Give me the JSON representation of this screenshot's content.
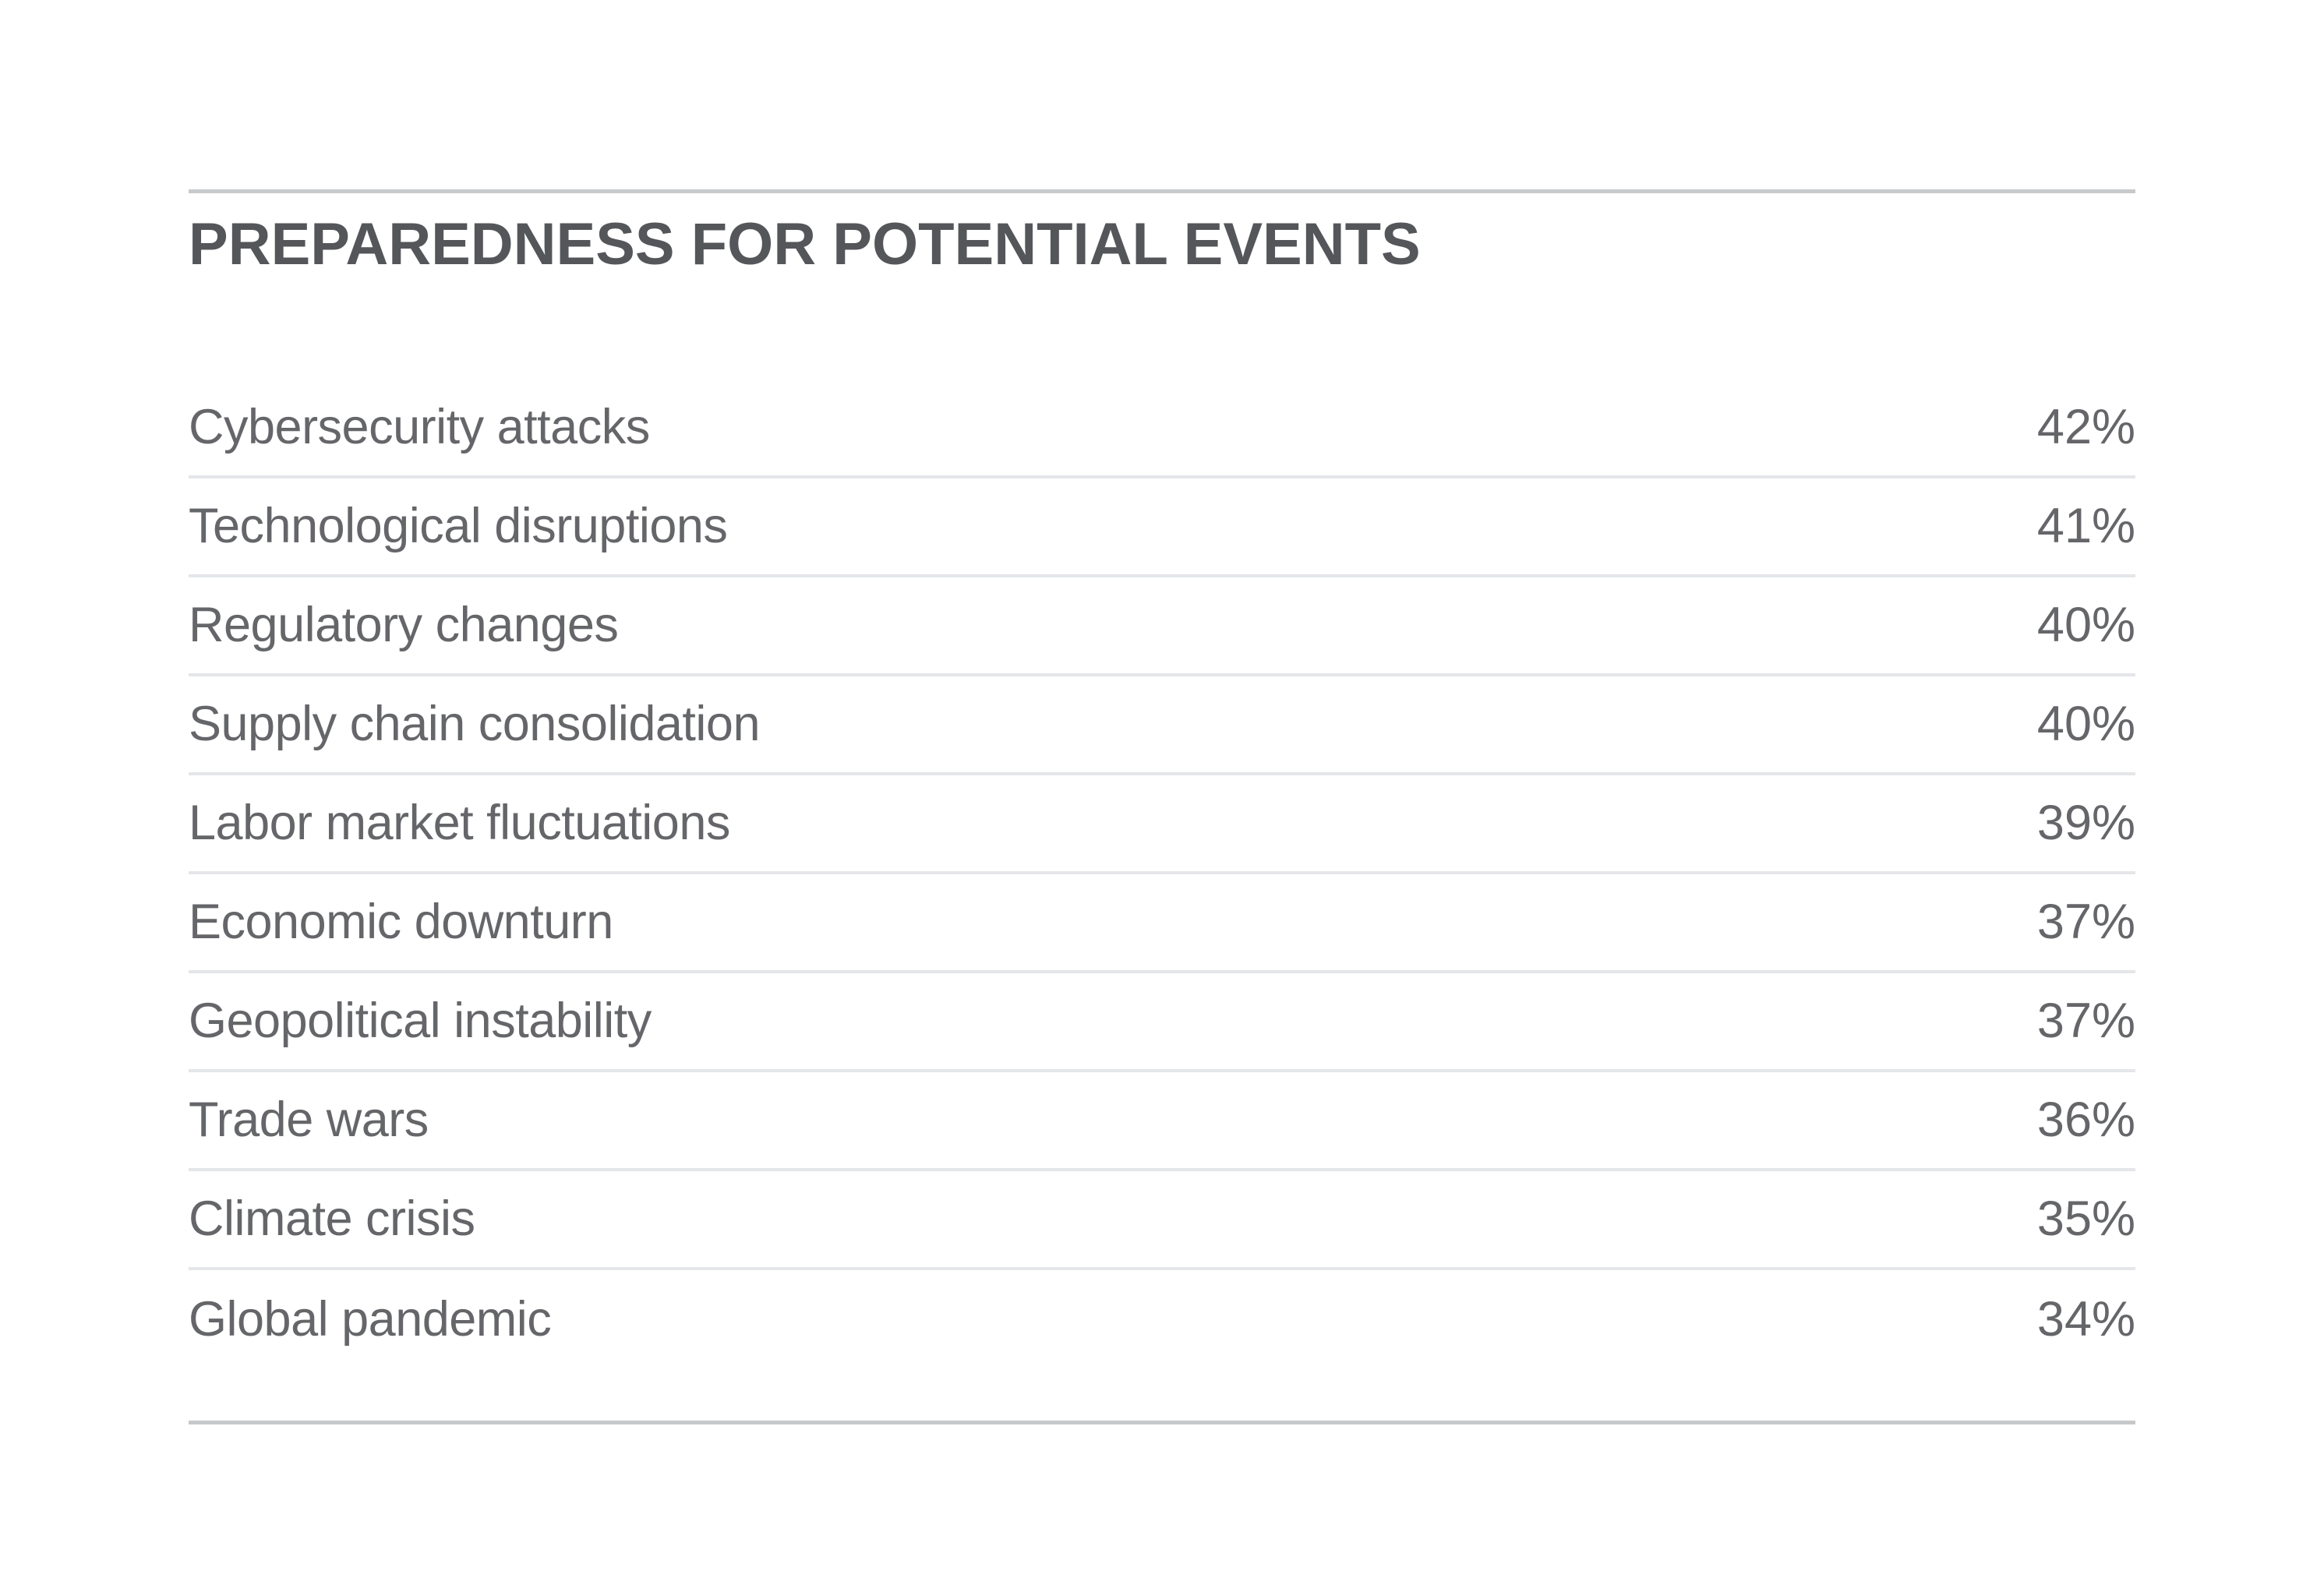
{
  "section": {
    "title": "PREPAREDNESS FOR POTENTIAL EVENTS"
  },
  "table": {
    "rows": [
      {
        "label": "Cybersecurity attacks",
        "value": "42%"
      },
      {
        "label": "Technological disruptions",
        "value": "41%"
      },
      {
        "label": "Regulatory changes",
        "value": "40%"
      },
      {
        "label": "Supply chain consolidation",
        "value": "40%"
      },
      {
        "label": "Labor market fluctuations",
        "value": "39%"
      },
      {
        "label": "Economic downturn",
        "value": "37%"
      },
      {
        "label": "Geopolitical instability",
        "value": "37%"
      },
      {
        "label": "Trade wars",
        "value": "36%"
      },
      {
        "label": "Climate crisis",
        "value": "35%"
      },
      {
        "label": "Global pandemic",
        "value": "34%"
      }
    ]
  },
  "colors": {
    "background": "#ffffff",
    "title_text": "#54565a",
    "row_text": "#656669",
    "row_separator": "#e4e6e9",
    "outer_rule": "#c8c9cb"
  },
  "chart_data": {
    "type": "table",
    "title": "PREPAREDNESS FOR POTENTIAL EVENTS",
    "categories": [
      "Cybersecurity attacks",
      "Technological disruptions",
      "Regulatory changes",
      "Supply chain consolidation",
      "Labor market fluctuations",
      "Economic downturn",
      "Geopolitical instability",
      "Trade wars",
      "Climate crisis",
      "Global pandemic"
    ],
    "values": [
      42,
      41,
      40,
      40,
      39,
      37,
      37,
      36,
      35,
      34
    ],
    "unit": "%",
    "sort_order": "descending",
    "legend": "none",
    "grid": "horizontal-row-separators"
  }
}
